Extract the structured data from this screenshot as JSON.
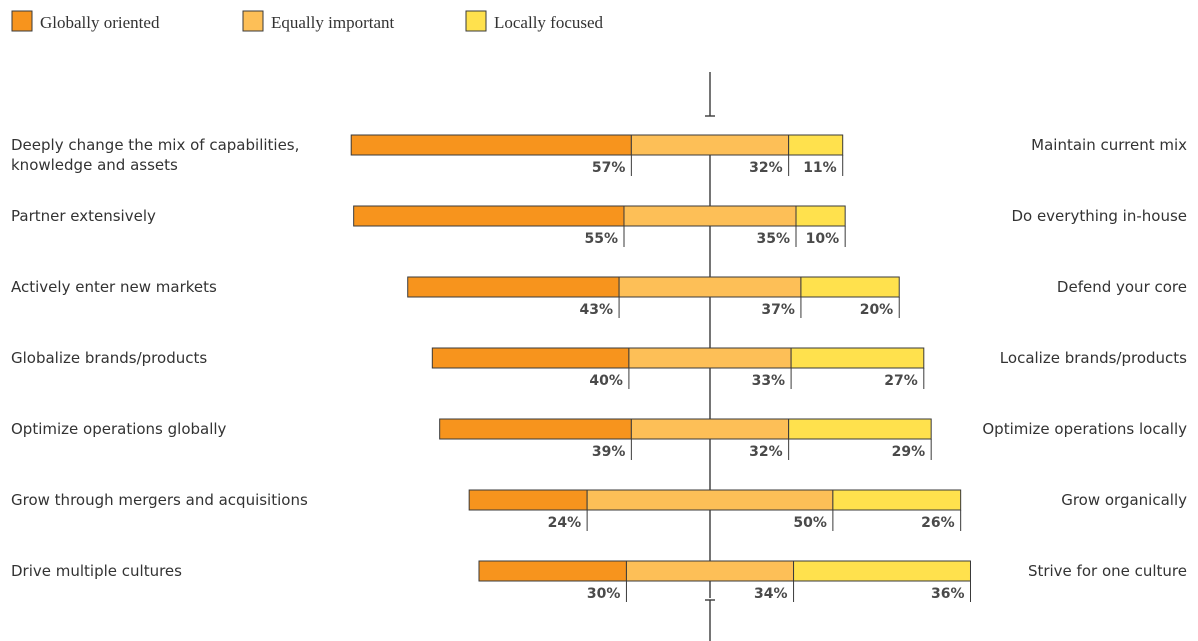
{
  "chart_data": {
    "type": "bar",
    "stacked": true,
    "orientation": "horizontal",
    "diverging": true,
    "unit": "%",
    "colors": {
      "global": "#F7941D",
      "equal": "#FDBF57",
      "local": "#FFE14D",
      "outline": "#3a3a3a",
      "text": "#333333"
    },
    "series": [
      {
        "name": "Globally oriented",
        "values": [
          57,
          55,
          43,
          40,
          39,
          24,
          30
        ]
      },
      {
        "name": "Equally important",
        "values": [
          32,
          35,
          37,
          33,
          32,
          50,
          34
        ]
      },
      {
        "name": "Locally focused",
        "values": [
          11,
          10,
          20,
          27,
          29,
          26,
          36
        ]
      }
    ],
    "left_labels": [
      [
        "Deeply change the mix of capabilities,",
        "knowledge and assets"
      ],
      [
        "Partner extensively"
      ],
      [
        "Actively enter new markets"
      ],
      [
        "Globalize brands/products"
      ],
      [
        "Optimize operations globally"
      ],
      [
        "Grow through mergers and acquisitions"
      ],
      [
        "Drive multiple cultures"
      ]
    ],
    "right_labels": [
      "Maintain current mix",
      "Do everything in-house",
      "Defend your core",
      "Localize brands/products",
      "Optimize operations locally",
      "Grow organically",
      "Strive for one culture"
    ],
    "legend_position": "top-left"
  }
}
